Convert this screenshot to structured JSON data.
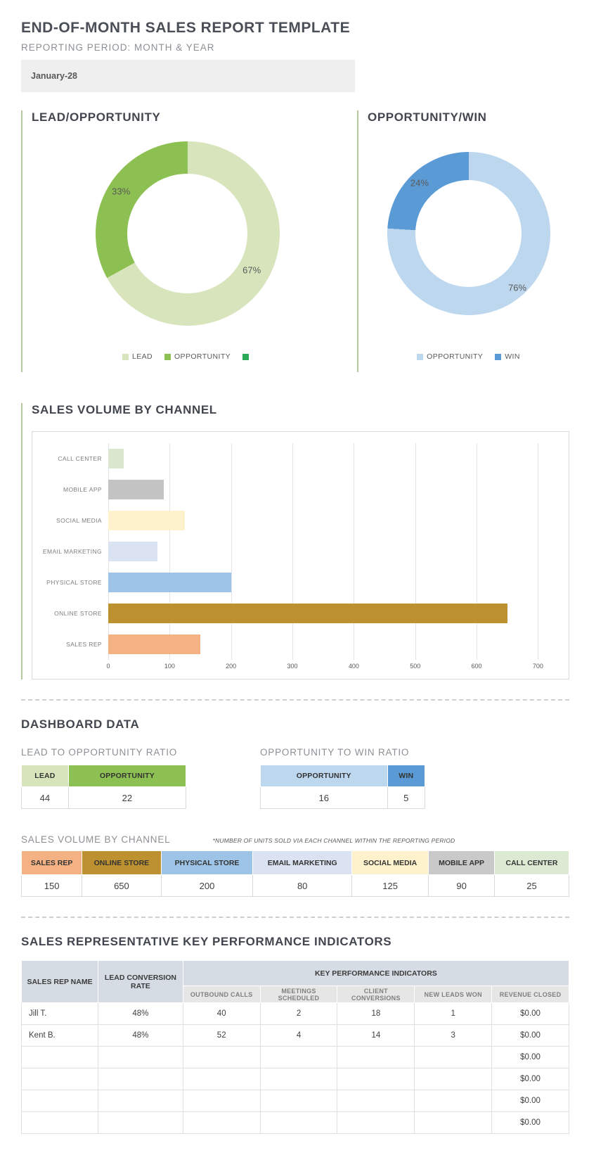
{
  "page": {
    "title": "END-OF-MONTH SALES REPORT TEMPLATE",
    "subtitle": "REPORTING PERIOD: MONTH & YEAR",
    "period_value": "January-28"
  },
  "chart_data": [
    {
      "type": "pie",
      "donut": true,
      "title": "LEAD/OPPORTUNITY",
      "slices": [
        {
          "label": "LEAD",
          "value": 67,
          "label_text": "67%",
          "color": "#d7e4bc"
        },
        {
          "label": "OPPORTUNITY",
          "value": 33,
          "label_text": "33%",
          "color": "#8dc052"
        }
      ],
      "legend": [
        {
          "label": "LEAD",
          "color": "#d7e4bc"
        },
        {
          "label": "OPPORTUNITY",
          "color": "#8dc052"
        },
        {
          "label": "",
          "color": "#2cab57"
        }
      ],
      "legend_position": "bottom"
    },
    {
      "type": "pie",
      "donut": true,
      "title": "OPPORTUNITY/WIN",
      "slices": [
        {
          "label": "OPPORTUNITY",
          "value": 76,
          "label_text": "76%",
          "color": "#bdd7ee"
        },
        {
          "label": "WIN",
          "value": 24,
          "label_text": "24%",
          "color": "#5b9bd5"
        }
      ],
      "legend": [
        {
          "label": "OPPORTUNITY",
          "color": "#bdd7ee"
        },
        {
          "label": "WIN",
          "color": "#5b9bd5"
        }
      ],
      "legend_position": "bottom"
    },
    {
      "type": "bar",
      "orientation": "horizontal",
      "title": "SALES VOLUME BY CHANNEL",
      "categories": [
        "CALL CENTER",
        "MOBILE APP",
        "SOCIAL MEDIA",
        "EMAIL MARKETING",
        "PHYSICAL STORE",
        "ONLINE STORE",
        "SALES REP"
      ],
      "values": [
        25,
        90,
        125,
        80,
        200,
        650,
        150
      ],
      "colors": [
        "#dbe8cf",
        "#c3c3c3",
        "#fdf2cc",
        "#dbe2f2",
        "#9dc3e6",
        "#bd9130",
        "#f4b183"
      ],
      "xlabel": "",
      "ylabel": "",
      "xlim": [
        0,
        700
      ],
      "xticks": [
        0,
        100,
        200,
        300,
        400,
        500,
        600,
        700
      ],
      "grid": true
    }
  ],
  "dashboard": {
    "heading": "DASHBOARD DATA",
    "lead_opportunity": {
      "title": "LEAD TO OPPORTUNITY RATIO",
      "headers": [
        {
          "label": "LEAD",
          "color": "#d7e4bc"
        },
        {
          "label": "OPPORTUNITY",
          "color": "#8dc052"
        }
      ],
      "values": [
        "44",
        "22"
      ]
    },
    "opportunity_win": {
      "title": "OPPORTUNITY TO WIN RATIO",
      "headers": [
        {
          "label": "OPPORTUNITY",
          "color": "#bdd7ee"
        },
        {
          "label": "WIN",
          "color": "#5b9bd5"
        }
      ],
      "values": [
        "16",
        "5"
      ]
    }
  },
  "sales_volume_table": {
    "title": "SALES VOLUME BY CHANNEL",
    "note": "*NUMBER OF UNITS SOLD VIA EACH CHANNEL WITHIN THE REPORTING PERIOD",
    "columns": [
      {
        "label": "SALES REP",
        "color": "#f4b183"
      },
      {
        "label": "ONLINE STORE",
        "color": "#bd9130"
      },
      {
        "label": "PHYSICAL STORE",
        "color": "#9dc3e6"
      },
      {
        "label": "EMAIL MARKETING",
        "color": "#dbe2f2"
      },
      {
        "label": "SOCIAL MEDIA",
        "color": "#fdf2cc"
      },
      {
        "label": "MOBILE APP",
        "color": "#c9c9c9"
      },
      {
        "label": "CALL CENTER",
        "color": "#dcead3"
      }
    ],
    "values": [
      "150",
      "650",
      "200",
      "80",
      "125",
      "90",
      "25"
    ]
  },
  "kpi": {
    "heading": "SALES REPRESENTATIVE KEY PERFORMANCE INDICATORS",
    "col_rep_name": "SALES REP NAME",
    "col_conversion": "LEAD CONVERSION RATE",
    "group_header": "KEY PERFORMANCE INDICATORS",
    "sub_headers": [
      "OUTBOUND CALLS",
      "MEETINGS SCHEDULED",
      "CLIENT CONVERSIONS",
      "NEW LEADS WON",
      "REVENUE CLOSED"
    ],
    "rows": [
      [
        "Jill T.",
        "48%",
        "40",
        "2",
        "18",
        "1",
        "$0.00"
      ],
      [
        "Kent B.",
        "48%",
        "52",
        "4",
        "14",
        "3",
        "$0.00"
      ],
      [
        "",
        "",
        "",
        "",
        "",
        "",
        "$0.00"
      ],
      [
        "",
        "",
        "",
        "",
        "",
        "",
        "$0.00"
      ],
      [
        "",
        "",
        "",
        "",
        "",
        "",
        "$0.00"
      ],
      [
        "",
        "",
        "",
        "",
        "",
        "",
        "$0.00"
      ]
    ]
  },
  "colors": {
    "accent_green_border": "#b6c79f",
    "heading_dark": "#42464e",
    "heading_gray": "#8c9094",
    "period_box_bg": "#efefef"
  }
}
